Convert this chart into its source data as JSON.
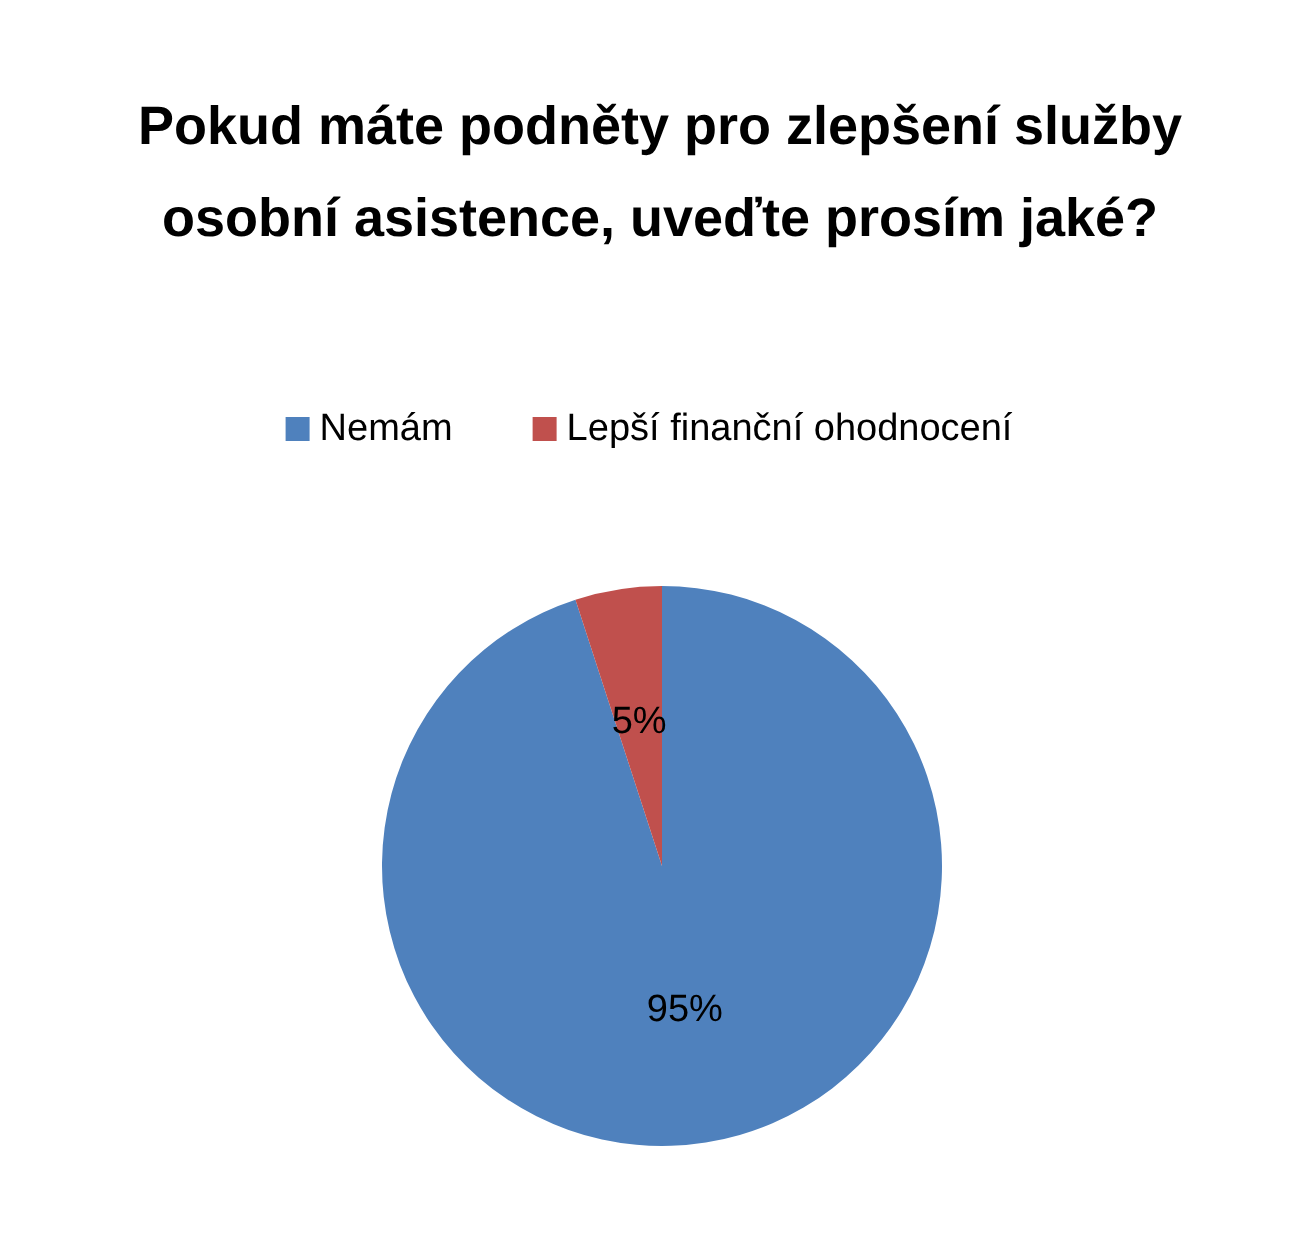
{
  "chart_data": {
    "type": "pie",
    "title": "Pokud máte podněty pro zlepšení služby osobní asistence, uveďte prosím jaké?",
    "categories": [
      "Nemám",
      "Lepší finanční ohodnocení"
    ],
    "values": [
      95,
      5
    ],
    "colors": [
      "#4f81bd",
      "#c0504d"
    ],
    "value_labels": [
      "95%",
      "5%"
    ],
    "legend": "top"
  }
}
